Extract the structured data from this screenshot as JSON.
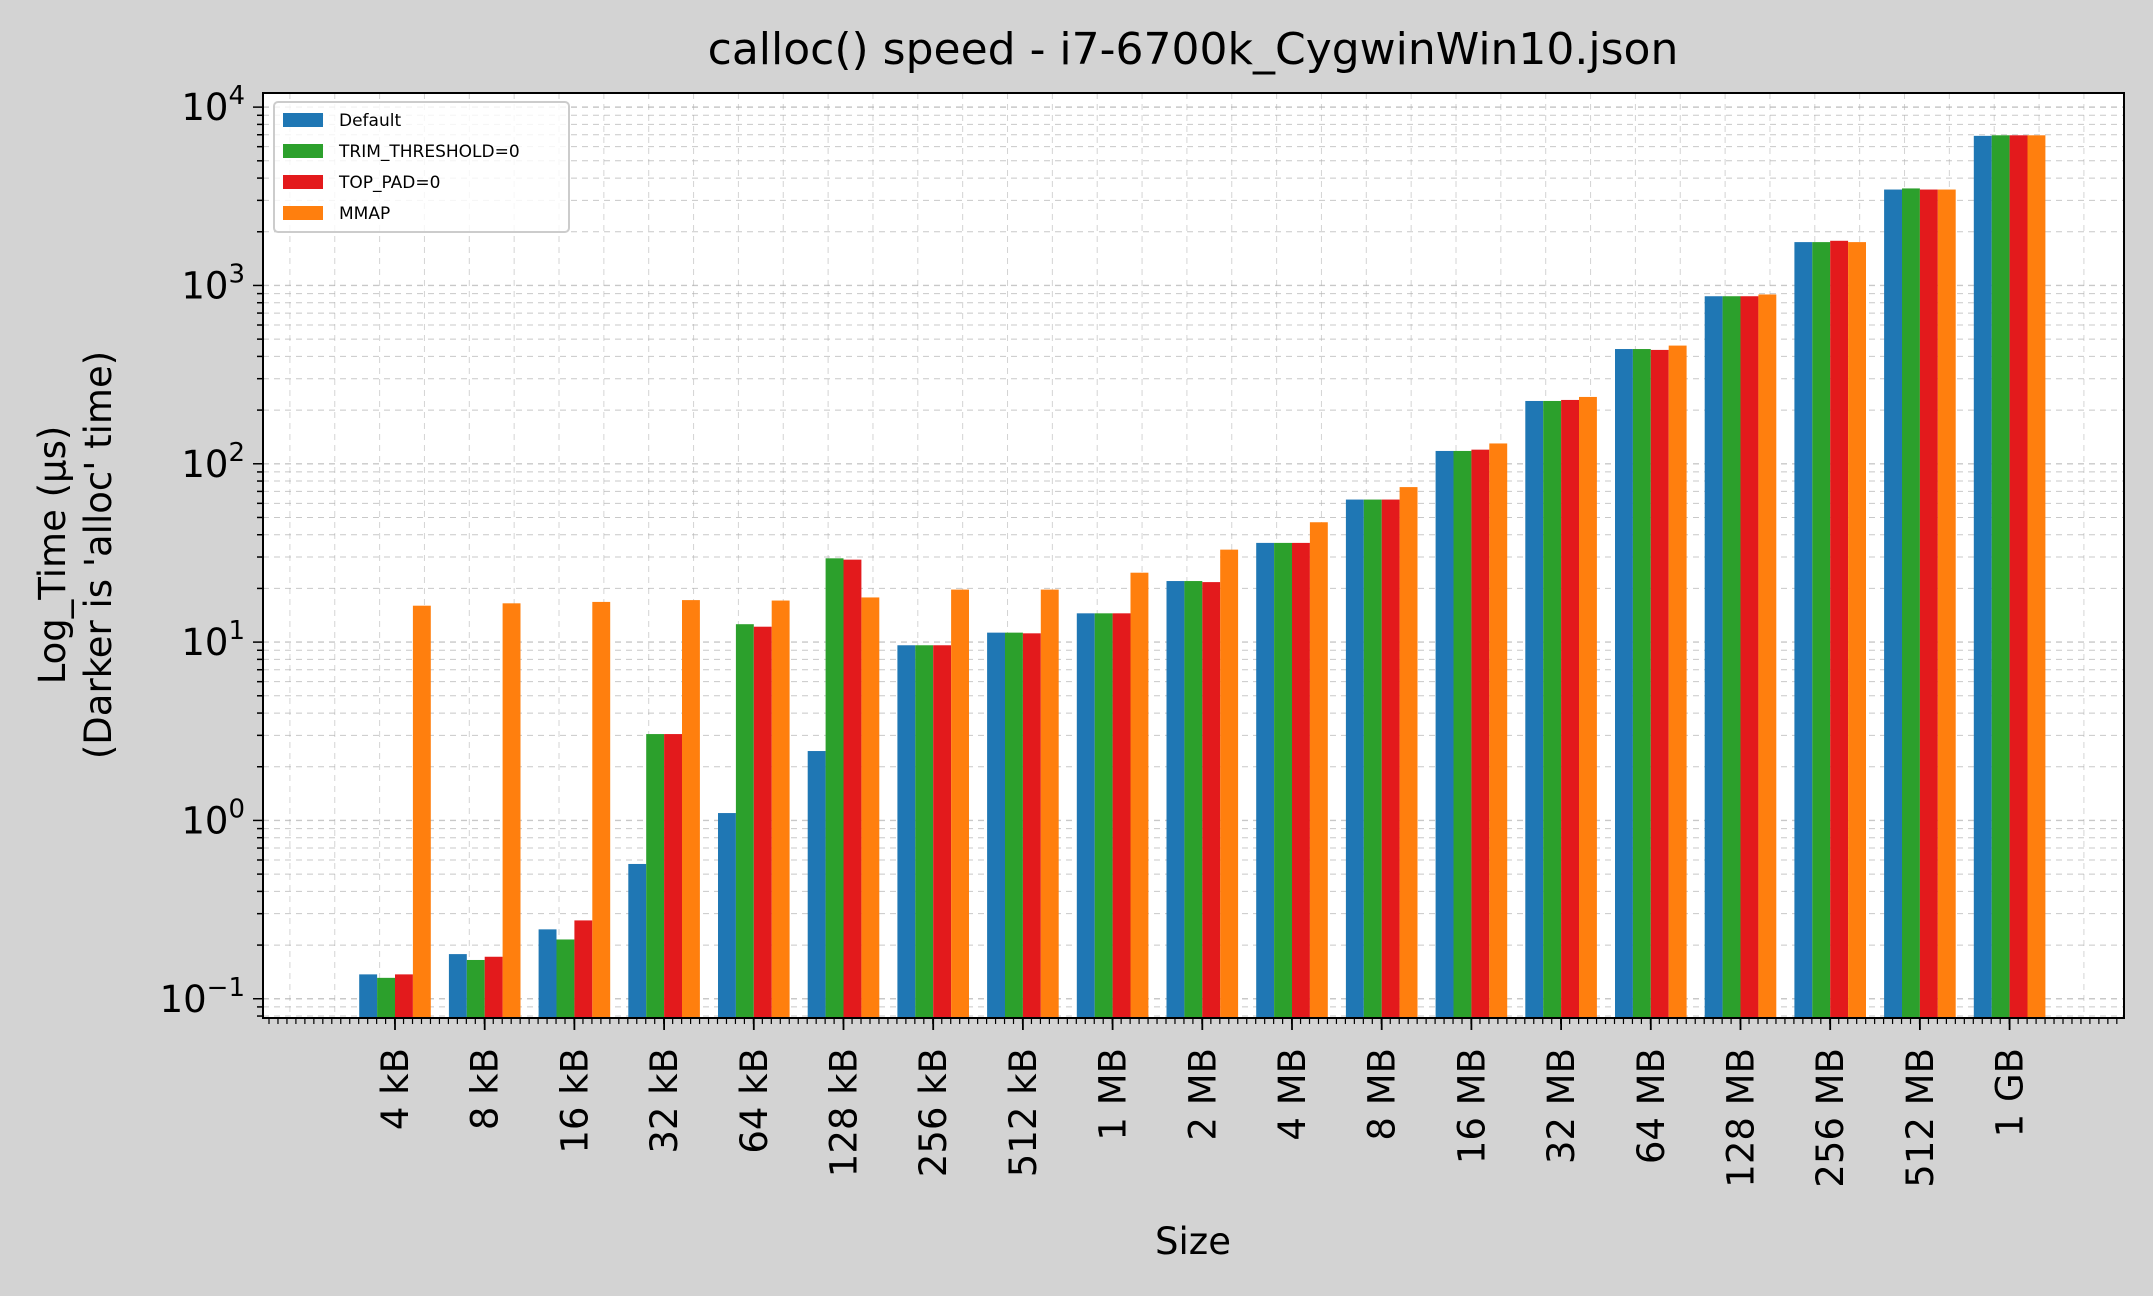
{
  "chart_data": {
    "type": "bar",
    "title": "calloc() speed - i7-6700k_CygwinWin10.json",
    "xlabel": "Size",
    "ylabel_line1": "Log_Time (µs)",
    "ylabel_line2": "(Darker is 'alloc' time)",
    "yscale": "log",
    "ylim": [
      0.078,
      12000
    ],
    "ytick_labels": [
      {
        "value": 0.1,
        "base": "10",
        "exp": "−1"
      },
      {
        "value": 1,
        "base": "10",
        "exp": "0"
      },
      {
        "value": 10,
        "base": "10",
        "exp": "1"
      },
      {
        "value": 100,
        "base": "10",
        "exp": "2"
      },
      {
        "value": 1000,
        "base": "10",
        "exp": "3"
      },
      {
        "value": 10000,
        "base": "10",
        "exp": "4"
      }
    ],
    "grid": true,
    "legend_position": "top-left",
    "categories": [
      "4 kB",
      "8 kB",
      "16 kB",
      "32 kB",
      "64 kB",
      "128 kB",
      "256 kB",
      "512 kB",
      "1 MB",
      "2 MB",
      "4 MB",
      "8 MB",
      "16 MB",
      "32 MB",
      "64 MB",
      "128 MB",
      "256 MB",
      "512 MB",
      "1 GB"
    ],
    "series": [
      {
        "name": "Default",
        "color": "#1f77b4",
        "values": [
          0.137,
          0.178,
          0.245,
          0.57,
          1.1,
          2.45,
          9.6,
          11.3,
          14.5,
          22,
          36,
          63,
          118,
          225,
          440,
          870,
          1750,
          3450,
          6900
        ]
      },
      {
        "name": "TRIM_THRESHOLD=0",
        "color": "#2ca02c",
        "values": [
          0.131,
          0.165,
          0.215,
          3.05,
          12.6,
          29.5,
          9.6,
          11.3,
          14.5,
          22,
          36,
          63,
          118,
          225,
          440,
          870,
          1750,
          3500,
          6950
        ]
      },
      {
        "name": "TOP_PAD=0",
        "color": "#e31a1c",
        "values": [
          0.137,
          0.172,
          0.275,
          3.05,
          12.2,
          29,
          9.6,
          11.2,
          14.5,
          21.7,
          36,
          63,
          120,
          228,
          435,
          870,
          1780,
          3450,
          6950
        ]
      },
      {
        "name": "MMAP",
        "color": "#ff7f0e",
        "values": [
          16,
          16.5,
          16.8,
          17.2,
          17.1,
          17.8,
          19.7,
          19.7,
          24.5,
          33,
          47,
          74,
          130,
          237,
          460,
          890,
          1750,
          3450,
          6950
        ]
      }
    ]
  }
}
